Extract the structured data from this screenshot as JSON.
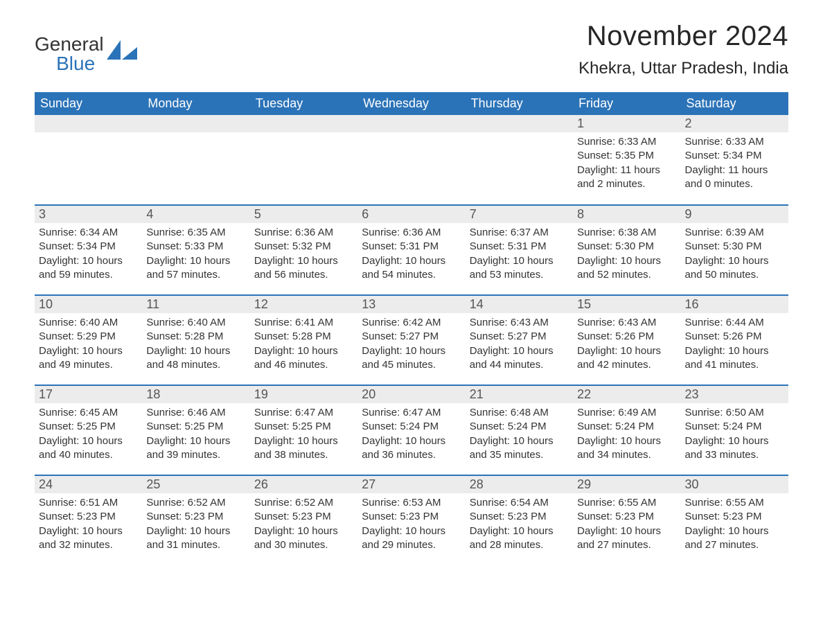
{
  "brand": {
    "word1": "General",
    "word2": "Blue"
  },
  "title": "November 2024",
  "location": "Khekra, Uttar Pradesh, India",
  "colors": {
    "header_bg": "#2b73b8",
    "header_text": "#ffffff",
    "daybar_bg": "#ececec",
    "daybar_text": "#555555",
    "body_text": "#333333",
    "rule": "#2b73b8",
    "page_bg": "#ffffff"
  },
  "fonts": {
    "title_pt": 40,
    "location_pt": 24,
    "weekday_pt": 18,
    "daynum_pt": 18,
    "body_pt": 15
  },
  "weekdays": [
    "Sunday",
    "Monday",
    "Tuesday",
    "Wednesday",
    "Thursday",
    "Friday",
    "Saturday"
  ],
  "labels": {
    "sunrise": "Sunrise",
    "sunset": "Sunset",
    "daylight": "Daylight"
  },
  "weeks": [
    [
      null,
      null,
      null,
      null,
      null,
      {
        "day": 1,
        "sunrise": "6:33 AM",
        "sunset": "5:35 PM",
        "daylight": "11 hours and 2 minutes."
      },
      {
        "day": 2,
        "sunrise": "6:33 AM",
        "sunset": "5:34 PM",
        "daylight": "11 hours and 0 minutes."
      }
    ],
    [
      {
        "day": 3,
        "sunrise": "6:34 AM",
        "sunset": "5:34 PM",
        "daylight": "10 hours and 59 minutes."
      },
      {
        "day": 4,
        "sunrise": "6:35 AM",
        "sunset": "5:33 PM",
        "daylight": "10 hours and 57 minutes."
      },
      {
        "day": 5,
        "sunrise": "6:36 AM",
        "sunset": "5:32 PM",
        "daylight": "10 hours and 56 minutes."
      },
      {
        "day": 6,
        "sunrise": "6:36 AM",
        "sunset": "5:31 PM",
        "daylight": "10 hours and 54 minutes."
      },
      {
        "day": 7,
        "sunrise": "6:37 AM",
        "sunset": "5:31 PM",
        "daylight": "10 hours and 53 minutes."
      },
      {
        "day": 8,
        "sunrise": "6:38 AM",
        "sunset": "5:30 PM",
        "daylight": "10 hours and 52 minutes."
      },
      {
        "day": 9,
        "sunrise": "6:39 AM",
        "sunset": "5:30 PM",
        "daylight": "10 hours and 50 minutes."
      }
    ],
    [
      {
        "day": 10,
        "sunrise": "6:40 AM",
        "sunset": "5:29 PM",
        "daylight": "10 hours and 49 minutes."
      },
      {
        "day": 11,
        "sunrise": "6:40 AM",
        "sunset": "5:28 PM",
        "daylight": "10 hours and 48 minutes."
      },
      {
        "day": 12,
        "sunrise": "6:41 AM",
        "sunset": "5:28 PM",
        "daylight": "10 hours and 46 minutes."
      },
      {
        "day": 13,
        "sunrise": "6:42 AM",
        "sunset": "5:27 PM",
        "daylight": "10 hours and 45 minutes."
      },
      {
        "day": 14,
        "sunrise": "6:43 AM",
        "sunset": "5:27 PM",
        "daylight": "10 hours and 44 minutes."
      },
      {
        "day": 15,
        "sunrise": "6:43 AM",
        "sunset": "5:26 PM",
        "daylight": "10 hours and 42 minutes."
      },
      {
        "day": 16,
        "sunrise": "6:44 AM",
        "sunset": "5:26 PM",
        "daylight": "10 hours and 41 minutes."
      }
    ],
    [
      {
        "day": 17,
        "sunrise": "6:45 AM",
        "sunset": "5:25 PM",
        "daylight": "10 hours and 40 minutes."
      },
      {
        "day": 18,
        "sunrise": "6:46 AM",
        "sunset": "5:25 PM",
        "daylight": "10 hours and 39 minutes."
      },
      {
        "day": 19,
        "sunrise": "6:47 AM",
        "sunset": "5:25 PM",
        "daylight": "10 hours and 38 minutes."
      },
      {
        "day": 20,
        "sunrise": "6:47 AM",
        "sunset": "5:24 PM",
        "daylight": "10 hours and 36 minutes."
      },
      {
        "day": 21,
        "sunrise": "6:48 AM",
        "sunset": "5:24 PM",
        "daylight": "10 hours and 35 minutes."
      },
      {
        "day": 22,
        "sunrise": "6:49 AM",
        "sunset": "5:24 PM",
        "daylight": "10 hours and 34 minutes."
      },
      {
        "day": 23,
        "sunrise": "6:50 AM",
        "sunset": "5:24 PM",
        "daylight": "10 hours and 33 minutes."
      }
    ],
    [
      {
        "day": 24,
        "sunrise": "6:51 AM",
        "sunset": "5:23 PM",
        "daylight": "10 hours and 32 minutes."
      },
      {
        "day": 25,
        "sunrise": "6:52 AM",
        "sunset": "5:23 PM",
        "daylight": "10 hours and 31 minutes."
      },
      {
        "day": 26,
        "sunrise": "6:52 AM",
        "sunset": "5:23 PM",
        "daylight": "10 hours and 30 minutes."
      },
      {
        "day": 27,
        "sunrise": "6:53 AM",
        "sunset": "5:23 PM",
        "daylight": "10 hours and 29 minutes."
      },
      {
        "day": 28,
        "sunrise": "6:54 AM",
        "sunset": "5:23 PM",
        "daylight": "10 hours and 28 minutes."
      },
      {
        "day": 29,
        "sunrise": "6:55 AM",
        "sunset": "5:23 PM",
        "daylight": "10 hours and 27 minutes."
      },
      {
        "day": 30,
        "sunrise": "6:55 AM",
        "sunset": "5:23 PM",
        "daylight": "10 hours and 27 minutes."
      }
    ]
  ]
}
